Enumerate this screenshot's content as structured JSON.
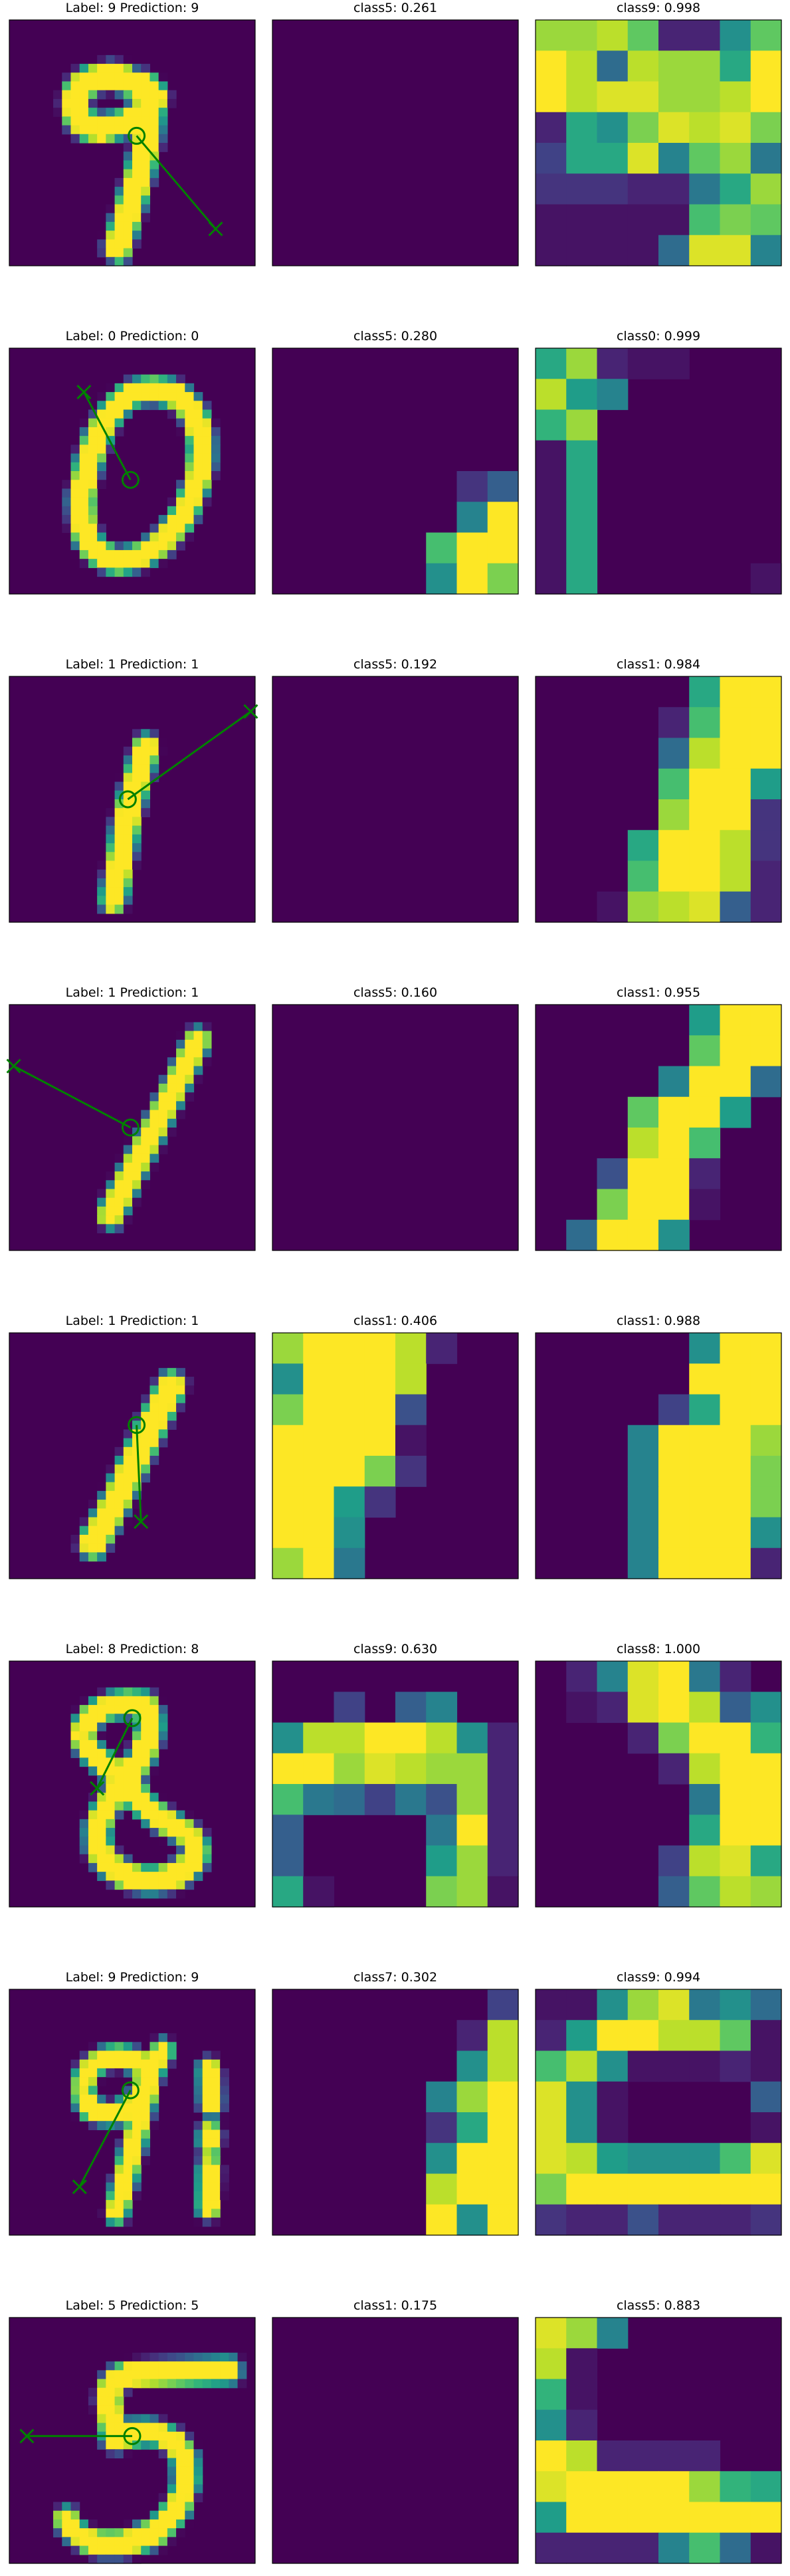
{
  "colors": {
    "background": "#ffffff",
    "viridis_low": "#440154",
    "viridis_mid": "#21918c",
    "viridis_high": "#fde725",
    "overlay": "#008000"
  },
  "rows": [
    {
      "image_title": "Label: 9 Prediction: 9",
      "map_a_title": "class5: 0.261",
      "map_b_title": "class9: 0.998",
      "digit": "9",
      "map_a_shape": "empty",
      "map_b_shape": "nine"
    },
    {
      "image_title": "Label: 0 Prediction: 0",
      "map_a_title": "class5: 0.280",
      "map_b_title": "class0: 0.999",
      "digit": "0",
      "map_a_shape": "corner",
      "map_b_shape": "zero"
    },
    {
      "image_title": "Label: 1 Prediction: 1",
      "map_a_title": "class5: 0.192",
      "map_b_title": "class1: 0.984",
      "digit": "1a",
      "map_a_shape": "empty",
      "map_b_shape": "one_a"
    },
    {
      "image_title": "Label: 1 Prediction: 1",
      "map_a_title": "class5: 0.160",
      "map_b_title": "class1: 0.955",
      "digit": "1b",
      "map_a_shape": "empty",
      "map_b_shape": "one_b"
    },
    {
      "image_title": "Label: 1 Prediction: 1",
      "map_a_title": "class1: 0.406",
      "map_b_title": "class1: 0.988",
      "digit": "1c",
      "map_a_shape": "one_c_weak",
      "map_b_shape": "one_c"
    },
    {
      "image_title": "Label: 8 Prediction: 8",
      "map_a_title": "class9: 0.630",
      "map_b_title": "class8: 1.000",
      "digit": "8",
      "map_a_shape": "eight_weak",
      "map_b_shape": "eight"
    },
    {
      "image_title": "Label: 9 Prediction: 9",
      "map_a_title": "class7: 0.302",
      "map_b_title": "class9: 0.994",
      "digit": "9b",
      "map_a_shape": "seven",
      "map_b_shape": "nine_b"
    },
    {
      "image_title": "Label: 5 Prediction: 5",
      "map_a_title": "class1: 0.175",
      "map_b_title": "class5: 0.883",
      "digit": "5",
      "map_a_shape": "empty",
      "map_b_shape": "five"
    }
  ]
}
